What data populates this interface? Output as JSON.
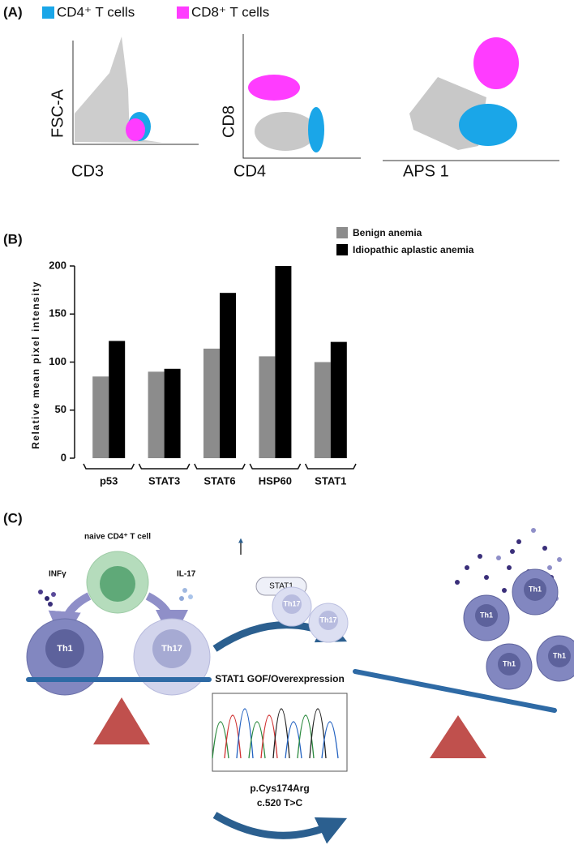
{
  "panel_a": {
    "label": "(A)",
    "legend": [
      "CD4⁺ T cells",
      "CD8⁺ T cells"
    ],
    "legend_colors": [
      "#1aa6e8",
      "#ff3cff"
    ],
    "plot1": {
      "y_label": "FSC-A",
      "x_label": "CD3"
    },
    "plot2": {
      "y_label": "CD8",
      "x_label": "CD4"
    },
    "plot3": {
      "x_label": "APS 1"
    }
  },
  "chart_data": {
    "type": "bar",
    "label": "(B)",
    "y_label": "Relative mean pixel intensity",
    "categories": [
      "p53",
      "STAT3",
      "STAT6",
      "HSP60",
      "STAT1"
    ],
    "series": [
      {
        "name": "Benign anemia",
        "color": "#8c8c8c",
        "values": [
          85,
          90,
          114,
          106,
          100
        ]
      },
      {
        "name": "Idiopathic aplastic anemia",
        "color": "#000000",
        "values": [
          122,
          93,
          172,
          200,
          121
        ]
      }
    ],
    "ylim": [
      0,
      200
    ],
    "yticks": [
      0,
      50,
      100,
      150,
      200
    ]
  },
  "panel_c": {
    "label": "(C)",
    "naive": "naive CD4⁺ T cell",
    "left_cytokine": "INFγ",
    "right_cytokine": "IL-17",
    "th1": "Th1",
    "th17": "Th17",
    "stat1_box": "STAT1",
    "gof": "STAT1 GOF/Overexpression",
    "mutation_protein": "p.Cys174Arg",
    "mutation_cdna": "c.520 T>C",
    "right_th17": [
      "Th17",
      "Th17"
    ],
    "right_th1": [
      "Th1",
      "Th1",
      "Th1",
      "Th1"
    ]
  }
}
